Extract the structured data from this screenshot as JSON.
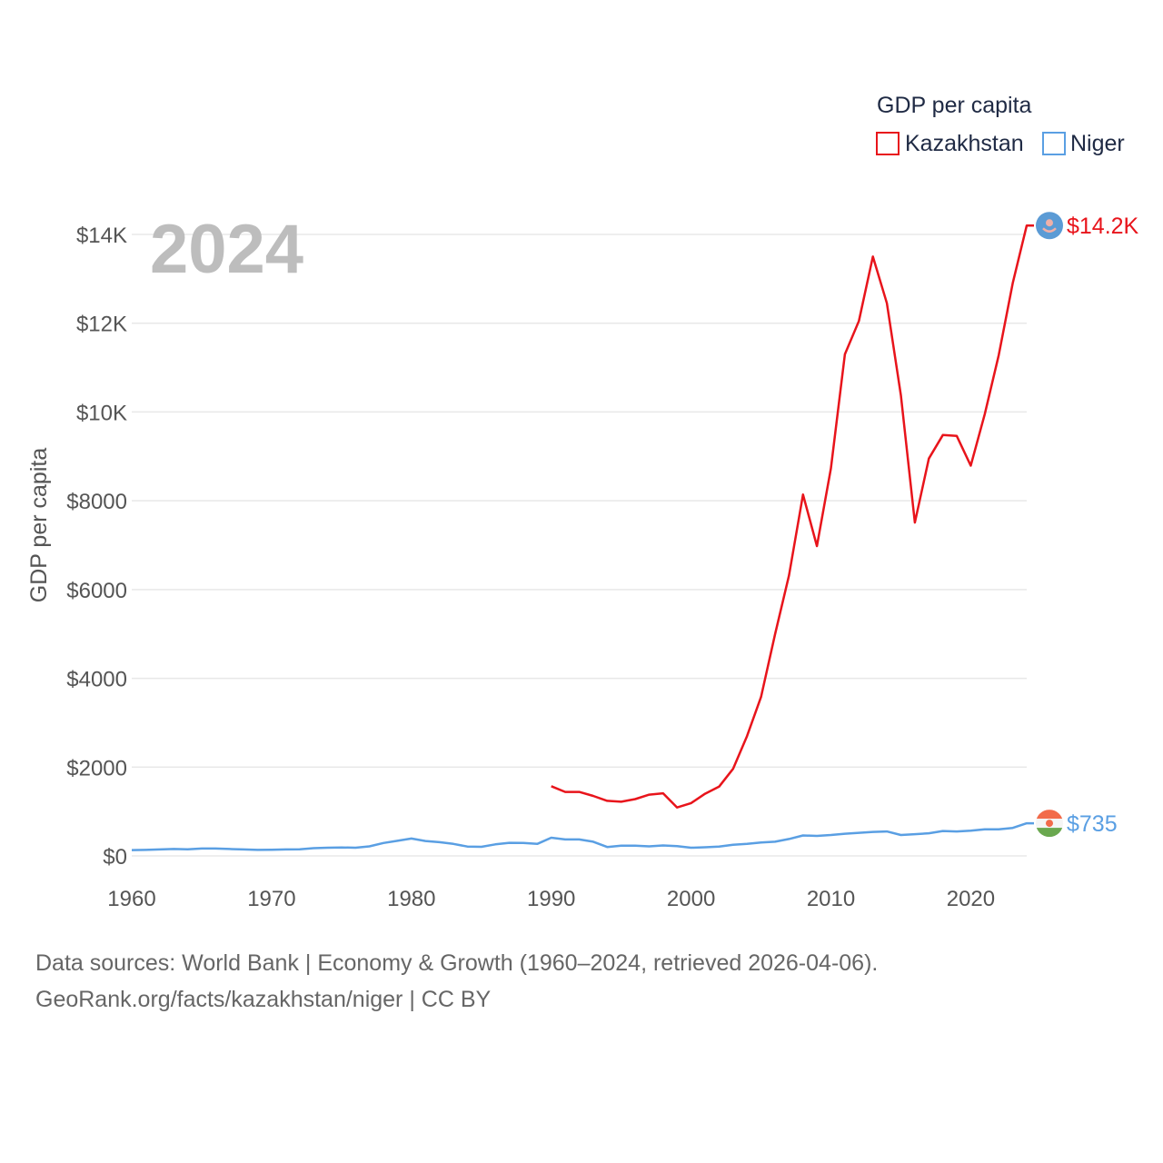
{
  "chart_data": {
    "type": "line",
    "year_watermark": "2024",
    "ylabel": "GDP per capita",
    "xlabel": "",
    "xlim": [
      1960,
      2024
    ],
    "ylim": [
      0,
      14000
    ],
    "x_ticks": [
      1960,
      1970,
      1980,
      1990,
      2000,
      2010,
      2020
    ],
    "x_tick_labels": [
      "1960",
      "1970",
      "1980",
      "1990",
      "2000",
      "2010",
      "2020"
    ],
    "y_ticks": [
      0,
      2000,
      4000,
      6000,
      8000,
      10000,
      12000,
      14000
    ],
    "y_tick_labels": [
      "$0",
      "$2000",
      "$4000",
      "$6000",
      "$8000",
      "$10K",
      "$12K",
      "$14K"
    ],
    "legend": {
      "title": "GDP per capita",
      "position": "top-right",
      "entries": [
        "Kazakhstan",
        "Niger"
      ]
    },
    "series": [
      {
        "name": "Kazakhstan",
        "color": "#e8141b",
        "end_label": "$14.2K",
        "end_value": 14200,
        "flag_icon": "kazakhstan-flag-icon",
        "x": [
          1990,
          1991,
          1992,
          1993,
          1994,
          1995,
          1996,
          1997,
          1998,
          1999,
          2000,
          2001,
          2002,
          2003,
          2004,
          2005,
          2006,
          2007,
          2008,
          2009,
          2010,
          2011,
          2012,
          2013,
          2014,
          2015,
          2016,
          2017,
          2018,
          2019,
          2020,
          2021,
          2022,
          2023,
          2024
        ],
        "values": [
          1570,
          1440,
          1440,
          1350,
          1240,
          1220,
          1280,
          1380,
          1410,
          1090,
          1190,
          1400,
          1560,
          1960,
          2700,
          3580,
          4990,
          6320,
          8140,
          6980,
          8730,
          11300,
          12050,
          13500,
          12450,
          10380,
          7510,
          8950,
          9480,
          9460,
          8790,
          9950,
          11280,
          12900,
          14200
        ]
      },
      {
        "name": "Niger",
        "color": "#5a9fe3",
        "end_label": "$735",
        "end_value": 735,
        "flag_icon": "niger-flag-icon",
        "x": [
          1960,
          1961,
          1962,
          1963,
          1964,
          1965,
          1966,
          1967,
          1968,
          1969,
          1970,
          1971,
          1972,
          1973,
          1974,
          1975,
          1976,
          1977,
          1978,
          1979,
          1980,
          1981,
          1982,
          1983,
          1984,
          1985,
          1986,
          1987,
          1988,
          1989,
          1990,
          1991,
          1992,
          1993,
          1994,
          1995,
          1996,
          1997,
          1998,
          1999,
          2000,
          2001,
          2002,
          2003,
          2004,
          2005,
          2006,
          2007,
          2008,
          2009,
          2010,
          2011,
          2012,
          2013,
          2014,
          2015,
          2016,
          2017,
          2018,
          2019,
          2020,
          2021,
          2022,
          2023,
          2024
        ],
        "values": [
          130,
          135,
          145,
          155,
          150,
          165,
          165,
          155,
          145,
          135,
          140,
          145,
          150,
          175,
          185,
          190,
          185,
          215,
          290,
          340,
          390,
          335,
          310,
          270,
          210,
          205,
          260,
          295,
          290,
          270,
          410,
          370,
          370,
          320,
          200,
          230,
          230,
          215,
          235,
          220,
          185,
          195,
          210,
          250,
          270,
          300,
          320,
          380,
          460,
          450,
          470,
          500,
          520,
          540,
          550,
          470,
          490,
          510,
          560,
          550,
          570,
          600,
          600,
          630,
          735
        ]
      }
    ]
  },
  "sources": {
    "line1": "Data sources: World Bank | Economy & Growth (1960–2024, retrieved 2026-04-06).",
    "line2": "GeoRank.org/facts/kazakhstan/niger | CC BY"
  }
}
